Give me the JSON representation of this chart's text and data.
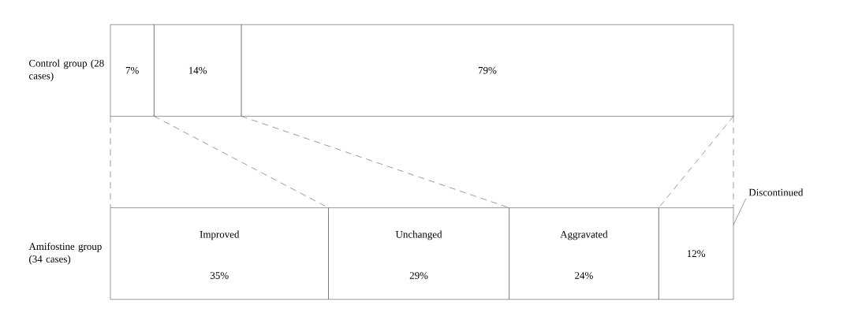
{
  "chart_data": {
    "type": "bar",
    "orientation": "horizontal",
    "stacked": true,
    "categories": [
      "Control group (28 cases)",
      "Amifostine group (34 cases)"
    ],
    "series": [
      {
        "name": "Improved",
        "color": "#ffffff",
        "values": [
          7,
          35
        ],
        "value_labels": [
          "7%",
          "35%"
        ]
      },
      {
        "name": "Unchanged",
        "color": "#ffffff",
        "values": [
          14,
          29
        ],
        "value_labels": [
          "14%",
          "29%"
        ]
      },
      {
        "name": "Aggravated",
        "color": "#ffffff",
        "values": [
          79,
          24
        ],
        "value_labels": [
          "79%",
          "24%"
        ]
      },
      {
        "name": "Discontinued",
        "color": "#ffffff",
        "values": [
          0,
          12
        ],
        "value_labels": [
          null,
          "12%"
        ]
      }
    ],
    "xlim": [
      0,
      100
    ],
    "tick_labels": "y",
    "legend": false
  }
}
